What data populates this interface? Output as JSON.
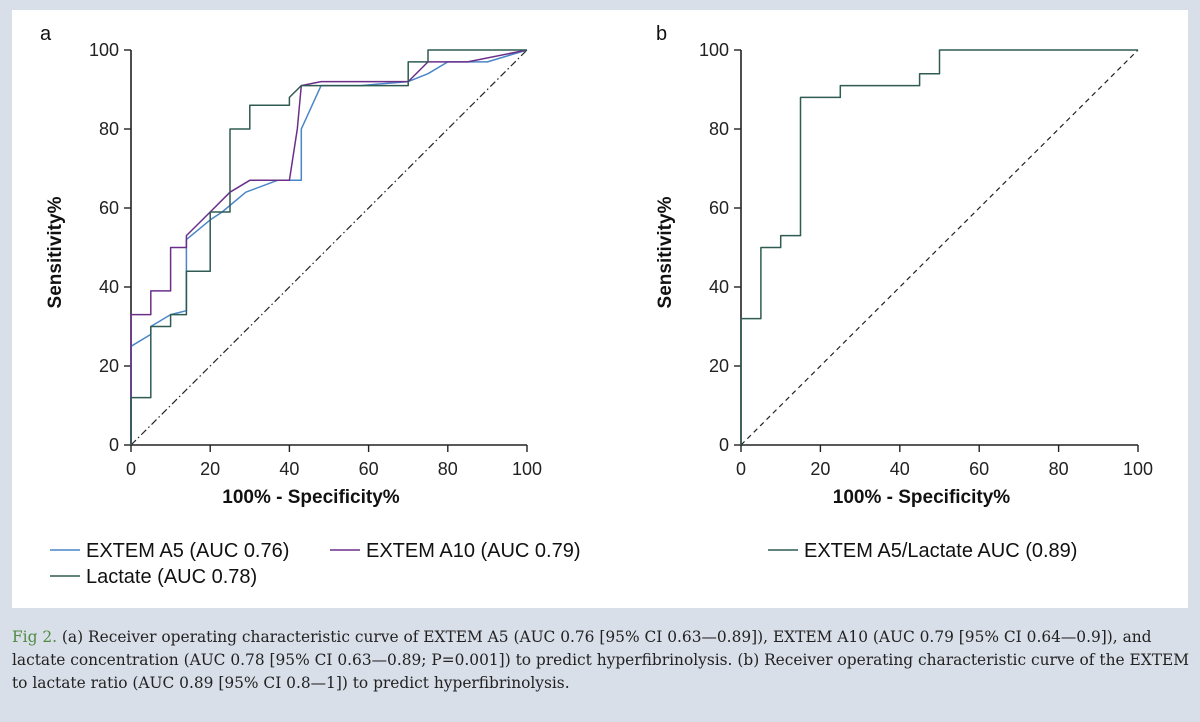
{
  "chart_data": [
    {
      "panel": "a",
      "type": "line",
      "xlabel": "100% - Specificity%",
      "ylabel": "Sensitivity%",
      "xlim": [
        0,
        100
      ],
      "ylim": [
        0,
        100
      ],
      "xticks": [
        "0",
        "20",
        "40",
        "60",
        "80",
        "100"
      ],
      "yticks": [
        "0",
        "20",
        "40",
        "60",
        "80",
        "100"
      ],
      "grid": false,
      "legend_placement": "bottom",
      "reference_line": {
        "style": "dash-dot",
        "from": [
          0,
          0
        ],
        "to": [
          100,
          100
        ]
      },
      "series": [
        {
          "name": "EXTEM A5 (AUC 0.76)",
          "color": "#4a86c8",
          "points": [
            [
              0,
              0
            ],
            [
              0,
              25
            ],
            [
              5,
              28
            ],
            [
              5,
              30
            ],
            [
              10,
              33
            ],
            [
              14,
              34
            ],
            [
              14,
              52
            ],
            [
              20,
              57
            ],
            [
              23,
              59
            ],
            [
              29,
              64
            ],
            [
              37,
              67
            ],
            [
              43,
              67
            ],
            [
              43,
              80
            ],
            [
              48,
              91
            ],
            [
              58,
              91
            ],
            [
              70,
              92
            ],
            [
              75,
              94
            ],
            [
              80,
              97
            ],
            [
              85,
              97
            ],
            [
              90,
              97
            ],
            [
              100,
              100
            ]
          ]
        },
        {
          "name": "EXTEM A10 (AUC 0.79)",
          "color": "#6b2f8a",
          "points": [
            [
              0,
              0
            ],
            [
              0,
              33
            ],
            [
              5,
              33
            ],
            [
              5,
              39
            ],
            [
              10,
              39
            ],
            [
              10,
              50
            ],
            [
              14,
              50
            ],
            [
              14,
              53
            ],
            [
              20,
              59
            ],
            [
              25,
              64
            ],
            [
              30,
              67
            ],
            [
              40,
              67
            ],
            [
              42,
              80
            ],
            [
              43,
              91
            ],
            [
              48,
              92
            ],
            [
              70,
              92
            ],
            [
              75,
              97
            ],
            [
              85,
              97
            ],
            [
              100,
              100
            ]
          ]
        },
        {
          "name": "Lactate (AUC 0.78)",
          "color": "#2f5b52",
          "points": [
            [
              0,
              0
            ],
            [
              0,
              12
            ],
            [
              5,
              12
            ],
            [
              5,
              30
            ],
            [
              10,
              30
            ],
            [
              10,
              33
            ],
            [
              14,
              33
            ],
            [
              14,
              44
            ],
            [
              20,
              44
            ],
            [
              20,
              59
            ],
            [
              25,
              59
            ],
            [
              25,
              80
            ],
            [
              30,
              80
            ],
            [
              30,
              86
            ],
            [
              40,
              86
            ],
            [
              40,
              88
            ],
            [
              43,
              91
            ],
            [
              70,
              91
            ],
            [
              70,
              97
            ],
            [
              75,
              97
            ],
            [
              75,
              100
            ],
            [
              100,
              100
            ]
          ]
        }
      ]
    },
    {
      "panel": "b",
      "type": "line",
      "xlabel": "100% - Specificity%",
      "ylabel": "Sensitivity%",
      "xlim": [
        0,
        100
      ],
      "ylim": [
        0,
        100
      ],
      "xticks": [
        "0",
        "20",
        "40",
        "60",
        "80",
        "100"
      ],
      "yticks": [
        "0",
        "20",
        "40",
        "60",
        "80",
        "100"
      ],
      "grid": false,
      "legend_placement": "bottom",
      "reference_line": {
        "style": "dashed",
        "from": [
          0,
          0
        ],
        "to": [
          100,
          100
        ]
      },
      "series": [
        {
          "name": "EXTEM A5/Lactate AUC (0.89)",
          "color": "#2f5b52",
          "points": [
            [
              0,
              0
            ],
            [
              0,
              32
            ],
            [
              5,
              32
            ],
            [
              5,
              50
            ],
            [
              10,
              50
            ],
            [
              10,
              53
            ],
            [
              15,
              53
            ],
            [
              15,
              88
            ],
            [
              25,
              88
            ],
            [
              25,
              91
            ],
            [
              45,
              91
            ],
            [
              45,
              94
            ],
            [
              50,
              94
            ],
            [
              50,
              100
            ],
            [
              100,
              100
            ]
          ]
        }
      ]
    }
  ],
  "caption": {
    "label": "Fig 2.",
    "text": " (a) Receiver operating characteristic curve of EXTEM A5 (AUC 0.76 [95% CI 0.63—0.89]), EXTEM A10 (AUC 0.79 [95% CI 0.64—0.9]), and lactate concentration (AUC 0.78 [95% CI 0.63—0.89; P=0.001]) to predict hyperfibrinolysis. (b) Receiver operating characteristic curve of the EXTEM to lactate ratio (AUC 0.89 [95% CI 0.8—1]) to predict hyperfibrinolysis."
  }
}
